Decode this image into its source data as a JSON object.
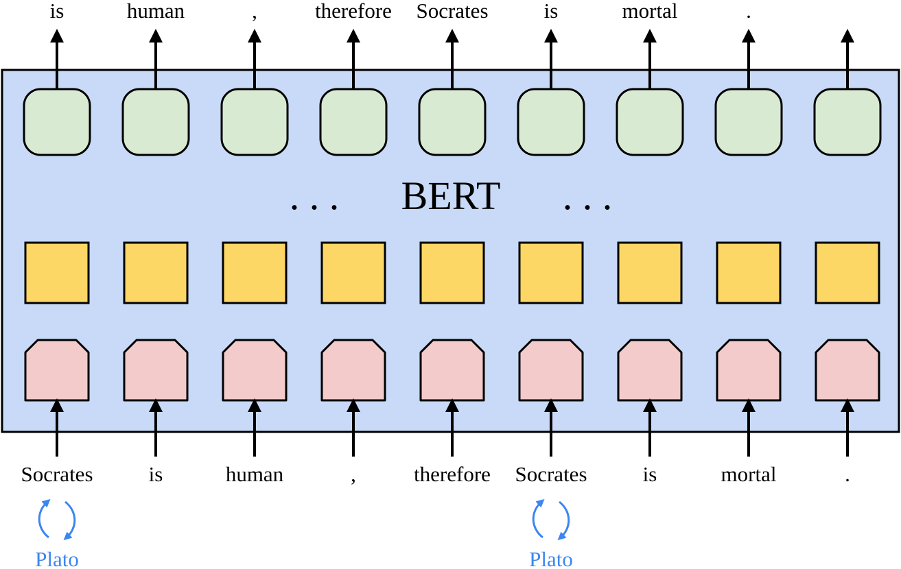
{
  "diagram": {
    "model_label": "BERT",
    "dots_left": ".  .  .",
    "dots_right": ".  .  .",
    "input_tokens": [
      "Socrates",
      "is",
      "human",
      ",",
      "therefore",
      "Socrates",
      "is",
      "mortal",
      "."
    ],
    "output_tokens": [
      "is",
      "human",
      ",",
      "therefore",
      "Socrates",
      "is",
      "mortal",
      "."
    ],
    "swaps": [
      {
        "at_token_index": 0,
        "replacement": "Plato"
      },
      {
        "at_token_index": 5,
        "replacement": "Plato"
      }
    ],
    "colors": {
      "model_fill": "#c8daf7",
      "output_node_fill": "#d9ead3",
      "hidden_node_fill": "#fcd765",
      "embedding_node_fill": "#f3cbcb",
      "swap_arrow": "#3b86f0",
      "stroke": "#000000"
    }
  }
}
